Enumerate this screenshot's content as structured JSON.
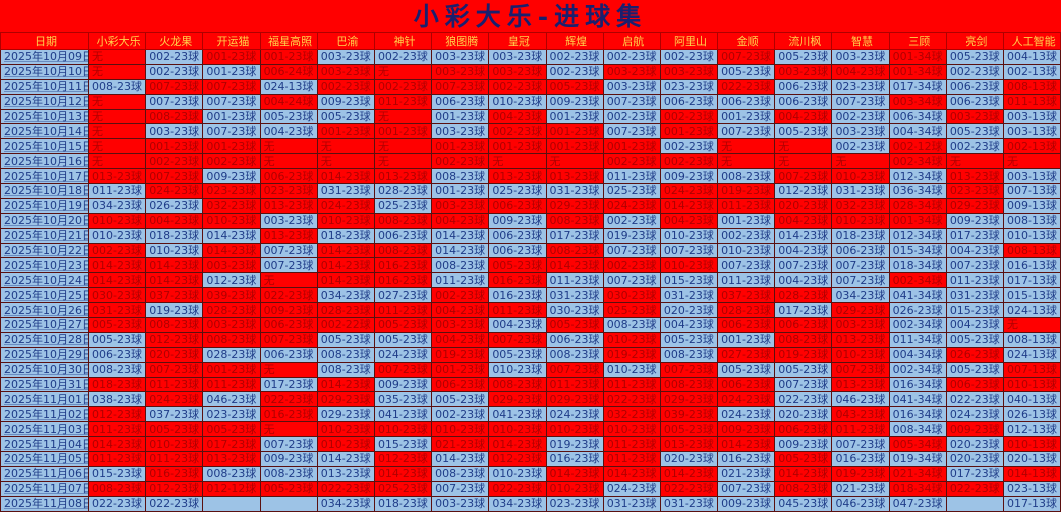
{
  "title": "小彩大乐-进球集",
  "fill_legend": {
    "R": "#ff0000",
    "B": "#9dc3e6"
  },
  "columns": [
    "日期",
    "小彩大乐",
    "火龙果",
    "开运猫",
    "福星高照",
    "巴渝",
    "神针",
    "狼图腾",
    "皇冠",
    "辉煌",
    "启航",
    "阿里山",
    "金顺",
    "流川枫",
    "智慧",
    "三顾",
    "亮剑",
    "人工智能"
  ],
  "rows": [
    {
      "date": "2025年10月09日",
      "fill": "RBRRBBBBBBBRBBRBB",
      "cells": [
        "无",
        "002-23球",
        "001-23球",
        "001-23球",
        "003-23球",
        "002-23球",
        "003-23球",
        "003-23球",
        "002-23球",
        "002-23球",
        "002-23球",
        "007-23球",
        "005-23球",
        "003-23球",
        "001-34球",
        "005-23球",
        "004-13球"
      ]
    },
    {
      "date": "2025年10月10日",
      "fill": "RBBRRRRRBRRBRRRBB",
      "cells": [
        "无",
        "002-23球",
        "001-23球",
        "006-24球",
        "003-23球",
        "无",
        "003-23球",
        "003-23球",
        "002-23球",
        "003-23球",
        "003-23球",
        "005-23球",
        "003-23球",
        "004-23球",
        "001-34球",
        "002-23球",
        "002-13球"
      ]
    },
    {
      "date": "2025年10月11日",
      "fill": "BRRBRRRRRBBRBBBBR",
      "cells": [
        "008-23球",
        "007-23球",
        "007-23球",
        "024-13球",
        "002-23球",
        "002-23球",
        "007-23球",
        "002-23球",
        "005-23球",
        "003-23球",
        "023-23球",
        "022-23球",
        "006-23球",
        "023-23球",
        "017-34球",
        "006-23球",
        "008-13球"
      ]
    },
    {
      "date": "2025年10月12日",
      "fill": "RBBRBRBBBBBBBBRBR",
      "cells": [
        "无",
        "007-23球",
        "007-23球",
        "004-24球",
        "009-23球",
        "011-23球",
        "006-23球",
        "010-23球",
        "009-23球",
        "007-23球",
        "006-23球",
        "006-23球",
        "006-23球",
        "007-23球",
        "003-34球",
        "006-23球",
        "011-13球"
      ]
    },
    {
      "date": "2025年10月13日",
      "fill": "RRBBBRBRBBRBRBBRB",
      "cells": [
        "无",
        "008-23球",
        "001-23球",
        "005-23球",
        "005-23球",
        "无",
        "001-23球",
        "004-23球",
        "001-23球",
        "002-23球",
        "002-23球",
        "001-23球",
        "004-23球",
        "002-23球",
        "006-34球",
        "003-23球",
        "003-13球"
      ]
    },
    {
      "date": "2025年10月14日",
      "fill": "RBBBRRBRRBRBBBBBB",
      "cells": [
        "无",
        "003-23球",
        "007-23球",
        "004-23球",
        "001-23球",
        "001-23球",
        "003-23球",
        "002-23球",
        "001-23球",
        "007-23球",
        "001-23球",
        "007-23球",
        "005-23球",
        "003-23球",
        "004-34球",
        "005-23球",
        "003-13球"
      ]
    },
    {
      "date": "2025年10月15日",
      "fill": "RRRRRRRRRRBRRBRBR",
      "cells": [
        "无",
        "001-23球",
        "001-23球",
        "无",
        "无",
        "无",
        "001-23球",
        "001-23球",
        "001-23球",
        "001-23球",
        "002-23球",
        "无",
        "无",
        "002-23球",
        "002-12球",
        "002-23球",
        "002-13球"
      ]
    },
    {
      "date": "2025年10月16日",
      "fill": "RRRRRRRRRRRRRRRRR",
      "cells": [
        "无",
        "002-23球",
        "002-23球",
        "无",
        "无",
        "无",
        "002-23球",
        "无",
        "无",
        "002-23球",
        "002-23球",
        "无",
        "无",
        "无",
        "002-34球",
        "无",
        "无"
      ]
    },
    {
      "date": "2025年10月17日",
      "fill": "RRBRRRBRRBBBRRBRB",
      "cells": [
        "013-23球",
        "007-23球",
        "009-23球",
        "006-23球",
        "014-23球",
        "013-23球",
        "008-23球",
        "013-23球",
        "013-23球",
        "011-23球",
        "009-23球",
        "008-23球",
        "007-23球",
        "010-23球",
        "012-34球",
        "013-23球",
        "003-13球"
      ]
    },
    {
      "date": "2025年10月18日",
      "fill": "BRRRBBBBBBRRBBBRB",
      "cells": [
        "011-23球",
        "024-23球",
        "023-23球",
        "023-23球",
        "031-23球",
        "028-23球",
        "001-23球",
        "025-23球",
        "031-23球",
        "025-23球",
        "024-23球",
        "019-23球",
        "012-23球",
        "031-23球",
        "036-34球",
        "023-23球",
        "007-13球"
      ]
    },
    {
      "date": "2025年10月19日",
      "fill": "BBRRRBRRRRRRRRRRB",
      "cells": [
        "034-23球",
        "026-23球",
        "032-23球",
        "013-23球",
        "024-23球",
        "025-23球",
        "003-23球",
        "006-23球",
        "029-23球",
        "024-23球",
        "014-23球",
        "011-23球",
        "020-23球",
        "032-23球",
        "028-34球",
        "029-23球",
        "009-13球"
      ]
    },
    {
      "date": "2025年10月20日",
      "fill": "RRRBRRRBRBRBRRRBB",
      "cells": [
        "010-23球",
        "004-23球",
        "010-23球",
        "003-23球",
        "010-23球",
        "008-23球",
        "004-23球",
        "009-23球",
        "008-23球",
        "002-23球",
        "004-23球",
        "001-23球",
        "004-23球",
        "010-23球",
        "001-34球",
        "009-23球",
        "008-13球"
      ]
    },
    {
      "date": "2025年10月21日",
      "fill": "BBBRBBBBBBBBBBBBB",
      "cells": [
        "010-23球",
        "018-23球",
        "014-23球",
        "013-23球",
        "018-23球",
        "006-23球",
        "014-23球",
        "006-23球",
        "017-23球",
        "019-23球",
        "010-23球",
        "002-23球",
        "014-23球",
        "018-23球",
        "012-34球",
        "017-23球",
        "010-13球"
      ]
    },
    {
      "date": "2025年10月22日",
      "fill": "RBRBRRBBRBBBBBBBR",
      "cells": [
        "002-23球",
        "010-23球",
        "014-23球",
        "007-23球",
        "014-23球",
        "008-23球",
        "014-23球",
        "006-23球",
        "008-23球",
        "007-23球",
        "007-23球",
        "010-23球",
        "004-23球",
        "006-23球",
        "015-34球",
        "004-23球",
        "008-13球"
      ]
    },
    {
      "date": "2025年10月23日",
      "fill": "RRRBRRBRRRRBBBBBB",
      "cells": [
        "014-23球",
        "014-23球",
        "003-23球",
        "007-23球",
        "014-23球",
        "016-23球",
        "008-23球",
        "005-23球",
        "014-23球",
        "002-23球",
        "010-23球",
        "007-23球",
        "007-23球",
        "007-23球",
        "018-34球",
        "007-23球",
        "016-13球"
      ]
    },
    {
      "date": "2025年10月24日",
      "fill": "RRBRRRBRBBBBBBRBB",
      "cells": [
        "014-23球",
        "014-23球",
        "012-23球",
        "无",
        "014-23球",
        "016-23球",
        "011-23球",
        "016-23球",
        "011-23球",
        "007-23球",
        "015-23球",
        "011-23球",
        "004-23球",
        "007-23球",
        "002-34球",
        "011-23球",
        "017-13球"
      ]
    },
    {
      "date": "2025年10月25日",
      "fill": "RRRRBBRBBRBRRBBBB",
      "cells": [
        "030-23球",
        "037-23球",
        "039-23球",
        "022-23球",
        "034-23球",
        "027-23球",
        "002-23球",
        "016-23球",
        "031-23球",
        "030-23球",
        "031-23球",
        "037-23球",
        "028-23球",
        "034-23球",
        "041-34球",
        "031-23球",
        "015-13球"
      ]
    },
    {
      "date": "2025年10月26日",
      "fill": "RBRRRRRRBRBRBRBBB",
      "cells": [
        "031-23球",
        "019-23球",
        "028-23球",
        "009-23球",
        "028-23球",
        "011-23球",
        "004-23球",
        "011-23球",
        "030-23球",
        "025-23球",
        "020-23球",
        "028-23球",
        "017-23球",
        "029-23球",
        "026-23球",
        "015-23球",
        "024-13球"
      ]
    },
    {
      "date": "2025年10月27日",
      "fill": "RRRRRRRBRBBRRRBBR",
      "cells": [
        "005-23球",
        "008-23球",
        "003-23球",
        "006-23球",
        "002-22球",
        "005-23球",
        "003-23球",
        "004-23球",
        "005-23球",
        "008-23球",
        "004-23球",
        "006-23球",
        "006-23球",
        "003-23球",
        "002-34球",
        "004-23球",
        "无"
      ]
    },
    {
      "date": "2025年10月28日",
      "fill": "BRRRBBRRBRBBRRBBB",
      "cells": [
        "005-23球",
        "012-23球",
        "008-23球",
        "007-23球",
        "005-23球",
        "005-23球",
        "004-23球",
        "007-23球",
        "006-23球",
        "010-23球",
        "005-23球",
        "001-23球",
        "008-23球",
        "013-23球",
        "011-34球",
        "005-23球",
        "008-13球"
      ]
    },
    {
      "date": "2025年10月29日",
      "fill": "BRBBBBRBBRBRRRBRB",
      "cells": [
        "006-23球",
        "020-23球",
        "028-23球",
        "006-23球",
        "008-23球",
        "024-23球",
        "019-23球",
        "005-23球",
        "008-23球",
        "019-23球",
        "008-23球",
        "027-23球",
        "019-23球",
        "010-23球",
        "004-34球",
        "026-23球",
        "024-13球"
      ]
    },
    {
      "date": "2025年10月30日",
      "fill": "BRRRBRRBRBRBBRBBR",
      "cells": [
        "008-23球",
        "007-23球",
        "001-23球",
        "无",
        "008-23球",
        "007-23球",
        "001-23球",
        "010-23球",
        "007-23球",
        "010-23球",
        "007-23球",
        "005-23球",
        "005-23球",
        "007-23球",
        "002-34球",
        "005-23球",
        "007-13球"
      ]
    },
    {
      "date": "2025年10月31日",
      "fill": "RRRBRBRRRRRRBRBRR",
      "cells": [
        "018-23球",
        "011-23球",
        "011-23球",
        "017-23球",
        "014-23球",
        "009-23球",
        "006-23球",
        "008-23球",
        "011-23球",
        "011-23球",
        "008-23球",
        "006-23球",
        "007-23球",
        "013-23球",
        "016-34球",
        "006-23球",
        "010-13球"
      ]
    },
    {
      "date": "2025年11月01日",
      "fill": "BRBRRBBRRRRRBBBBB",
      "cells": [
        "038-23球",
        "024-23球",
        "046-23球",
        "022-23球",
        "029-23球",
        "035-23球",
        "005-23球",
        "029-23球",
        "029-23球",
        "022-23球",
        "029-23球",
        "024-23球",
        "022-23球",
        "046-23球",
        "041-34球",
        "022-23球",
        "040-13球"
      ]
    },
    {
      "date": "2025年11月02日",
      "fill": "RBBRBBBBBRRBBRBBB",
      "cells": [
        "012-23球",
        "037-23球",
        "023-23球",
        "016-23球",
        "029-23球",
        "041-23球",
        "002-23球",
        "041-23球",
        "024-23球",
        "032-23球",
        "039-23球",
        "024-23球",
        "020-23球",
        "043-23球",
        "016-34球",
        "024-23球",
        "026-13球"
      ]
    },
    {
      "date": "2025年11月03日",
      "fill": "RRRRRRRRRRRRRRBRB",
      "cells": [
        "011-23球",
        "005-23球",
        "005-23球",
        "无",
        "010-23球",
        "010-23球",
        "010-23球",
        "010-23球",
        "010-23球",
        "010-23球",
        "005-23球",
        "009-23球",
        "006-23球",
        "011-23球",
        "008-34球",
        "009-23球",
        "012-13球"
      ]
    },
    {
      "date": "2025年11月04日",
      "fill": "RRRBRBRRBRRRBBRBR",
      "cells": [
        "014-23球",
        "010-23球",
        "017-23球",
        "007-23球",
        "010-23球",
        "015-23球",
        "021-23球",
        "014-23球",
        "019-23球",
        "011-23球",
        "013-23球",
        "014-23球",
        "009-23球",
        "007-23球",
        "005-34球",
        "020-23球",
        "010-13球"
      ]
    },
    {
      "date": "2025年11月05日",
      "fill": "RRRBBRBRBRBBRBBBB",
      "cells": [
        "011-23球",
        "011-23球",
        "013-23球",
        "009-23球",
        "014-23球",
        "012-23球",
        "014-23球",
        "012-23球",
        "016-23球",
        "011-23球",
        "020-23球",
        "016-23球",
        "005-23球",
        "016-23球",
        "019-34球",
        "020-23球",
        "020-13球"
      ]
    },
    {
      "date": "2025年11月06日",
      "fill": "BRBBBRBBRRRBRRRBR",
      "cells": [
        "015-23球",
        "016-23球",
        "008-23球",
        "008-23球",
        "013-23球",
        "014-23球",
        "008-23球",
        "010-23球",
        "014-23球",
        "014-23球",
        "014-23球",
        "021-23球",
        "014-23球",
        "019-23球",
        "021-34球",
        "017-23球",
        "014-13球"
      ]
    },
    {
      "date": "2025年11月07日",
      "fill": "RRRRRRBRRBRBRBRRB",
      "cells": [
        "008-23球",
        "012-23球",
        "012-12球",
        "005-23球",
        "022-23球",
        "025-23球",
        "007-23球",
        "022-23球",
        "010-23球",
        "024-23球",
        "022-23球",
        "007-23球",
        "008-23球",
        "021-23球",
        "018-34球",
        "022-23球",
        "023-13球"
      ]
    },
    {
      "date": "2025年11月08日",
      "fill": "BBBBBBBBBBBBBBBBB",
      "cells": [
        "022-23球",
        "022-23球",
        "",
        "",
        "034-23球",
        "018-23球",
        "003-23球",
        "034-23球",
        "023-23球",
        "031-23球",
        "031-23球",
        "009-23球",
        "045-23球",
        "046-23球",
        "047-23球",
        "",
        "017-13球"
      ]
    }
  ]
}
